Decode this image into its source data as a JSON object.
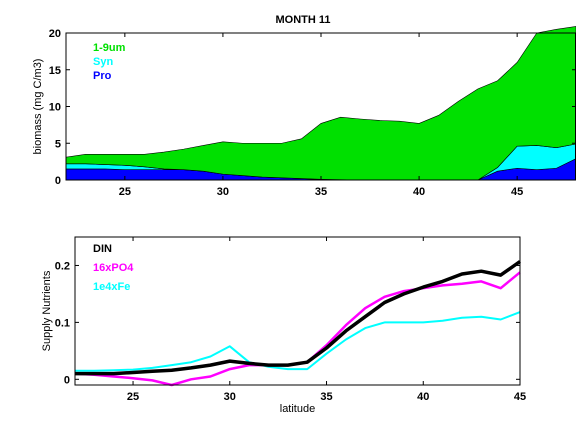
{
  "chart_data": [
    {
      "type": "area",
      "title": "MONTH 11",
      "xlabel": "",
      "ylabel": "biomass (mg C/m3)",
      "xlim": [
        22,
        48
      ],
      "ylim": [
        0,
        20
      ],
      "xticks": [
        25,
        30,
        35,
        40,
        45
      ],
      "yticks": [
        0,
        5,
        10,
        15,
        20
      ],
      "stacked": true,
      "legend_position": "top-left",
      "x": [
        22,
        23,
        24,
        25,
        26,
        27,
        28,
        29,
        30,
        31,
        32,
        33,
        34,
        35,
        36,
        37,
        38,
        39,
        40,
        41,
        42,
        43,
        44,
        45,
        46,
        47,
        48
      ],
      "series": [
        {
          "name": "Pro",
          "color": "#0000ff",
          "values": [
            1.5,
            1.5,
            1.5,
            1.4,
            1.4,
            1.4,
            1.4,
            1.2,
            0.8,
            0.6,
            0.4,
            0.3,
            0.2,
            0.1,
            0.05,
            0,
            0,
            0,
            0,
            0,
            0,
            0,
            1.2,
            1.6,
            1.4,
            1.6,
            2.9
          ]
        },
        {
          "name": "Syn",
          "color": "#00ffff",
          "values": [
            0.7,
            0.7,
            0.6,
            0.6,
            0.4,
            0.1,
            0,
            0,
            0,
            0,
            0,
            0,
            0,
            0,
            0,
            0,
            0,
            0,
            0,
            0,
            0,
            0,
            0.5,
            3.0,
            3.3,
            2.8,
            2.0
          ]
        },
        {
          "name": "1-9um",
          "color": "#00e000",
          "values": [
            0.9,
            1.3,
            1.4,
            1.5,
            1.7,
            2.3,
            2.8,
            3.5,
            4.4,
            4.4,
            4.6,
            4.7,
            5.4,
            7.6,
            8.5,
            8.3,
            8.1,
            8.0,
            7.7,
            8.8,
            10.7,
            12.4,
            11.8,
            11.4,
            15.3,
            16.1,
            16.0
          ]
        }
      ]
    },
    {
      "type": "line",
      "title": "",
      "xlabel": "latitude",
      "ylabel": "Supply Nutrients",
      "xlim": [
        22,
        45
      ],
      "ylim": [
        -0.01,
        0.25
      ],
      "xticks": [
        25,
        30,
        35,
        40,
        45
      ],
      "yticks": [
        0,
        0.1,
        0.2
      ],
      "legend_position": "top-left",
      "x": [
        22,
        23,
        24,
        25,
        26,
        27,
        28,
        29,
        30,
        31,
        32,
        33,
        34,
        35,
        36,
        37,
        38,
        39,
        40,
        41,
        42,
        43,
        44,
        45
      ],
      "series": [
        {
          "name": "DIN",
          "color": "#000000",
          "values": [
            0.01,
            0.01,
            0.01,
            0.012,
            0.014,
            0.016,
            0.02,
            0.025,
            0.032,
            0.028,
            0.025,
            0.025,
            0.03,
            0.055,
            0.085,
            0.11,
            0.135,
            0.15,
            0.162,
            0.172,
            0.185,
            0.19,
            0.183,
            0.207
          ]
        },
        {
          "name": "16xPO4",
          "color": "#ff00ff",
          "values": [
            0.01,
            0.008,
            0.005,
            0.002,
            -0.002,
            -0.01,
            0,
            0.005,
            0.018,
            0.025,
            0.025,
            0.025,
            0.03,
            0.06,
            0.095,
            0.125,
            0.145,
            0.155,
            0.16,
            0.165,
            0.168,
            0.172,
            0.16,
            0.188
          ]
        },
        {
          "name": "1e4xFe",
          "color": "#00ffff",
          "values": [
            0.015,
            0.015,
            0.016,
            0.017,
            0.02,
            0.025,
            0.03,
            0.04,
            0.058,
            0.03,
            0.022,
            0.018,
            0.018,
            0.045,
            0.07,
            0.09,
            0.1,
            0.1,
            0.1,
            0.103,
            0.108,
            0.11,
            0.105,
            0.118
          ]
        }
      ]
    }
  ]
}
